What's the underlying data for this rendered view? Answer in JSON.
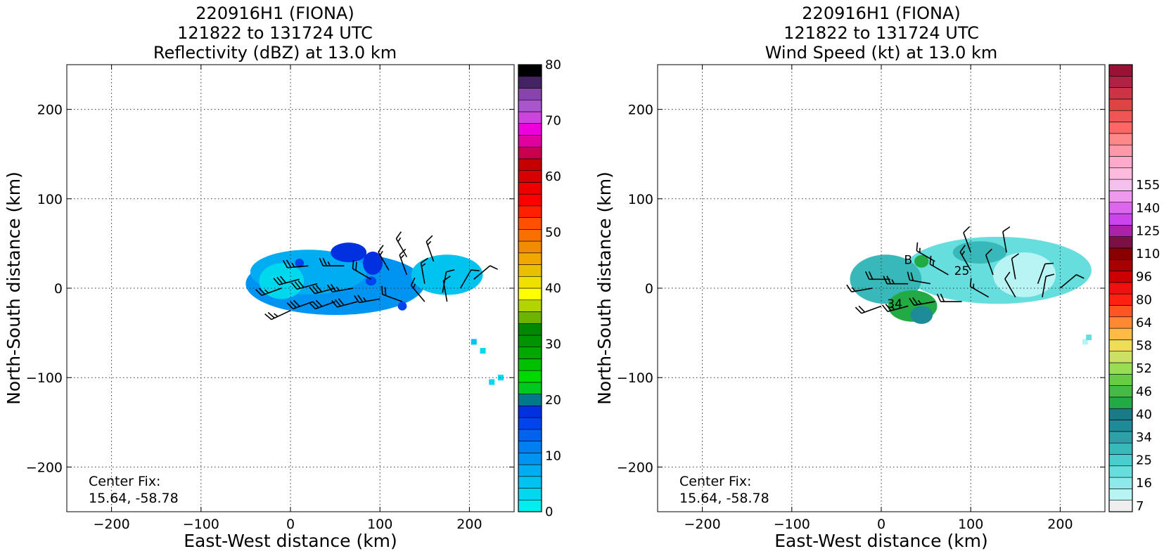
{
  "chart_data": [
    {
      "type": "heatmap",
      "title": [
        "220916H1 (FIONA)",
        "121822 to 131724 UTC",
        "Reflectivity (dBZ) at 13.0 km"
      ],
      "xlabel": "East-West distance (km)",
      "ylabel": "North-South distance (km)",
      "xlim": [
        -250,
        250
      ],
      "ylim": [
        -250,
        250
      ],
      "xticks": [
        -200,
        -100,
        0,
        100,
        200
      ],
      "yticks": [
        -200,
        -100,
        0,
        100,
        200
      ],
      "xtick_labels": [
        "−200",
        "−100",
        "0",
        "100",
        "200"
      ],
      "ytick_labels": [
        "−200",
        "−100",
        "0",
        "100",
        "200"
      ],
      "grid": true,
      "annotation": [
        "Center Fix:",
        "15.64, -58.78"
      ],
      "colorbar": {
        "min": 0,
        "max": 80,
        "step": 2.5,
        "ticks": [
          0,
          10,
          20,
          30,
          40,
          50,
          60,
          70,
          80
        ],
        "colors": [
          "#00eeee",
          "#00d8ee",
          "#00c3f0",
          "#00acf2",
          "#0094f2",
          "#0080f0",
          "#0063ee",
          "#0044ee",
          "#0030e0",
          "#007a8a",
          "#00c81e",
          "#00d800",
          "#00c000",
          "#00a800",
          "#009400",
          "#008800",
          "#6cb400",
          "#b2d400",
          "#ffff00",
          "#f0e000",
          "#e8c000",
          "#f0a800",
          "#f08c00",
          "#f87000",
          "#ff5000",
          "#ff2000",
          "#ff0000",
          "#ee0000",
          "#d80000",
          "#c40000",
          "#c8004e",
          "#e000a0",
          "#ee00dc",
          "#cc44dd",
          "#aa55cc",
          "#8844aa",
          "#442266",
          "#000000"
        ]
      },
      "fields": [
        {
          "x": 50,
          "y": 5,
          "w": 200,
          "h": 70,
          "value": 11
        },
        {
          "x": 20,
          "y": 18,
          "w": 130,
          "h": 50,
          "value": 9
        },
        {
          "x": 175,
          "y": 15,
          "w": 80,
          "h": 45,
          "value": 5
        },
        {
          "x": -10,
          "y": 8,
          "w": 50,
          "h": 40,
          "value": 4
        },
        {
          "x": 65,
          "y": 40,
          "w": 40,
          "h": 22,
          "value": 22
        },
        {
          "x": 92,
          "y": 28,
          "w": 22,
          "h": 26,
          "value": 20
        },
        {
          "x": 10,
          "y": 28,
          "w": 10,
          "h": 10,
          "value": 19
        },
        {
          "x": 90,
          "y": 8,
          "w": 12,
          "h": 10,
          "value": 18
        },
        {
          "x": 125,
          "y": -20,
          "w": 10,
          "h": 10,
          "value": 19
        }
      ],
      "scatter_cells": [
        {
          "x": 225,
          "y": -105,
          "value": 4
        },
        {
          "x": 215,
          "y": -70,
          "value": 4
        },
        {
          "x": 205,
          "y": -60,
          "value": 7
        },
        {
          "x": 235,
          "y": -100,
          "value": 3
        }
      ],
      "barbs": [
        {
          "x": -10,
          "y": 0,
          "speed": 25,
          "dir": 250
        },
        {
          "x": 10,
          "y": 10,
          "speed": 30,
          "dir": 255
        },
        {
          "x": 30,
          "y": 5,
          "speed": 30,
          "dir": 255
        },
        {
          "x": 50,
          "y": 0,
          "speed": 30,
          "dir": 255
        },
        {
          "x": 70,
          "y": 0,
          "speed": 25,
          "dir": 260
        },
        {
          "x": 90,
          "y": 10,
          "speed": 20,
          "dir": 300
        },
        {
          "x": 110,
          "y": 20,
          "speed": 15,
          "dir": 330
        },
        {
          "x": 130,
          "y": 15,
          "speed": 15,
          "dir": 340
        },
        {
          "x": 150,
          "y": 5,
          "speed": 15,
          "dir": 350
        },
        {
          "x": 170,
          "y": -5,
          "speed": 10,
          "dir": 10
        },
        {
          "x": 190,
          "y": 0,
          "speed": 10,
          "dir": 30
        },
        {
          "x": 205,
          "y": 10,
          "speed": 10,
          "dir": 50
        },
        {
          "x": 0,
          "y": -25,
          "speed": 25,
          "dir": 245
        },
        {
          "x": 25,
          "y": -15,
          "speed": 30,
          "dir": 250
        },
        {
          "x": 50,
          "y": -15,
          "speed": 30,
          "dir": 250
        },
        {
          "x": 75,
          "y": -15,
          "speed": 30,
          "dir": 255
        },
        {
          "x": 100,
          "y": -12,
          "speed": 25,
          "dir": 260
        },
        {
          "x": 125,
          "y": -15,
          "speed": 20,
          "dir": 290
        },
        {
          "x": 150,
          "y": -15,
          "speed": 15,
          "dir": 320
        },
        {
          "x": 175,
          "y": -15,
          "speed": 10,
          "dir": 350
        },
        {
          "x": 20,
          "y": 25,
          "speed": 25,
          "dir": 265
        },
        {
          "x": 60,
          "y": 25,
          "speed": 25,
          "dir": 270
        },
        {
          "x": 130,
          "y": 35,
          "speed": 15,
          "dir": 330
        },
        {
          "x": 160,
          "y": 30,
          "speed": 15,
          "dir": 340
        }
      ]
    },
    {
      "type": "heatmap",
      "title": [
        "220916H1 (FIONA)",
        "121822 to 131724 UTC",
        "Wind Speed (kt) at 13.0 km"
      ],
      "xlabel": "East-West distance (km)",
      "ylabel": "North-South distance (km)",
      "xlim": [
        -250,
        250
      ],
      "ylim": [
        -250,
        250
      ],
      "xticks": [
        -200,
        -100,
        0,
        100,
        200
      ],
      "yticks": [
        -200,
        -100,
        0,
        100,
        200
      ],
      "xtick_labels": [
        "−200",
        "−100",
        "0",
        "100",
        "200"
      ],
      "ytick_labels": [
        "−200",
        "−100",
        "0",
        "100",
        "200"
      ],
      "grid": true,
      "annotation": [
        "Center Fix:",
        "15.64, -58.78"
      ],
      "contour_labels": [
        {
          "text": "34",
          "x": 15,
          "y": -22
        },
        {
          "text": "B",
          "x": 30,
          "y": 27
        },
        {
          "text": "25",
          "x": 90,
          "y": 15
        }
      ],
      "colorbar": {
        "ticks": [
          7,
          16,
          25,
          34,
          40,
          46,
          52,
          58,
          64,
          80,
          96,
          110,
          125,
          140,
          155
        ],
        "colors": [
          "#eeeeee",
          "#b8f4f4",
          "#8ceaea",
          "#66dede",
          "#4ccccc",
          "#38b8b8",
          "#2ea0a8",
          "#1e8c98",
          "#1a7a88",
          "#22aa44",
          "#44bb44",
          "#66cc44",
          "#99dd55",
          "#cce066",
          "#eedd55",
          "#ffbb44",
          "#ff8833",
          "#ff5522",
          "#ff2211",
          "#ee1111",
          "#cc0000",
          "#a80000",
          "#880000",
          "#7a1144",
          "#aa22aa",
          "#cc44ee",
          "#dd66ee",
          "#ee99ee",
          "#f4c0ee",
          "#ffbbdd",
          "#ffaacc",
          "#ff99aa",
          "#ff8888",
          "#ff6666",
          "#ee5555",
          "#dd4444",
          "#cc3344",
          "#b02244",
          "#991133"
        ]
      },
      "fields": [
        {
          "x": 130,
          "y": 20,
          "w": 210,
          "h": 75,
          "value": 16
        },
        {
          "x": 160,
          "y": 15,
          "w": 70,
          "h": 50,
          "value": 7
        },
        {
          "x": 5,
          "y": 10,
          "w": 80,
          "h": 55,
          "value": 25
        },
        {
          "x": 110,
          "y": 40,
          "w": 60,
          "h": 25,
          "value": 25
        },
        {
          "x": 35,
          "y": -20,
          "w": 55,
          "h": 35,
          "value": 40
        },
        {
          "x": 45,
          "y": -30,
          "w": 25,
          "h": 20,
          "value": 34
        },
        {
          "x": 45,
          "y": 30,
          "w": 16,
          "h": 14,
          "value": 40
        }
      ],
      "scatter_cells": [
        {
          "x": 228,
          "y": -60,
          "value": 7
        },
        {
          "x": 232,
          "y": -55,
          "value": 16
        }
      ],
      "barbs": [
        {
          "x": -10,
          "y": 0,
          "speed": 15,
          "dir": 260
        },
        {
          "x": 10,
          "y": 10,
          "speed": 20,
          "dir": 270
        },
        {
          "x": 30,
          "y": 5,
          "speed": 25,
          "dir": 270
        },
        {
          "x": 55,
          "y": 5,
          "speed": 20,
          "dir": 280
        },
        {
          "x": 75,
          "y": 15,
          "speed": 15,
          "dir": 300
        },
        {
          "x": 100,
          "y": 20,
          "speed": 15,
          "dir": 330
        },
        {
          "x": 125,
          "y": 15,
          "speed": 10,
          "dir": 340
        },
        {
          "x": 150,
          "y": 10,
          "speed": 10,
          "dir": 350
        },
        {
          "x": 175,
          "y": 5,
          "speed": 10,
          "dir": 20
        },
        {
          "x": 200,
          "y": 0,
          "speed": 10,
          "dir": 50
        },
        {
          "x": 0,
          "y": -20,
          "speed": 20,
          "dir": 250
        },
        {
          "x": 30,
          "y": -20,
          "speed": 25,
          "dir": 255
        },
        {
          "x": 60,
          "y": -15,
          "speed": 25,
          "dir": 260
        },
        {
          "x": 90,
          "y": -15,
          "speed": 20,
          "dir": 270
        },
        {
          "x": 120,
          "y": -10,
          "speed": 15,
          "dir": 300
        },
        {
          "x": 150,
          "y": -10,
          "speed": 10,
          "dir": 330
        },
        {
          "x": 180,
          "y": -10,
          "speed": 10,
          "dir": 10
        },
        {
          "x": 60,
          "y": 30,
          "speed": 15,
          "dir": 300
        },
        {
          "x": 100,
          "y": 40,
          "speed": 10,
          "dir": 340
        },
        {
          "x": 140,
          "y": 40,
          "speed": 10,
          "dir": 350
        }
      ]
    }
  ]
}
